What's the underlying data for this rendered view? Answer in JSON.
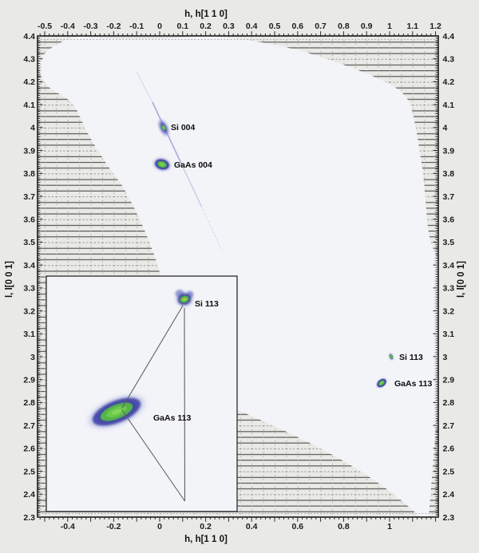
{
  "axes": {
    "top": {
      "title": "h, h[1 1 0]",
      "labels": [
        "-0.5",
        "-0.4",
        "-0.3",
        "-0.2",
        "-0.1",
        "0",
        "0.1",
        "0.2",
        "0.3",
        "0.4",
        "0.5",
        "0.6",
        "0.7",
        "0.8",
        "0.9",
        "1",
        "1.1",
        "1.2"
      ]
    },
    "bottom": {
      "title": "h, h[1 1 0]",
      "labels": [
        "-0.4",
        "-0.2",
        "0",
        "0.2",
        "0.4",
        "0.6",
        "0.8",
        "1"
      ]
    },
    "left": {
      "title": "l, l[0 0 1]",
      "labels": [
        "4.4",
        "4.3",
        "4.2",
        "4.1",
        "4",
        "3.9",
        "3.8",
        "3.7",
        "3.6",
        "3.5",
        "3.4",
        "3.3",
        "3.2",
        "3.1",
        "3",
        "2.9",
        "2.8",
        "2.7",
        "2.6",
        "2.5",
        "2.4",
        "2.3"
      ]
    },
    "right": {
      "title": "l, l[0 0 1]",
      "labels": [
        "4.4",
        "4.3",
        "4.2",
        "4.1",
        "4",
        "3.9",
        "3.8",
        "3.7",
        "3.6",
        "3.5",
        "3.4",
        "3.3",
        "3.2",
        "3.1",
        "3",
        "2.9",
        "2.8",
        "2.7",
        "2.6",
        "2.5",
        "2.4",
        "2.3"
      ]
    }
  },
  "peak_labels": {
    "si004": "Si 004",
    "gaas004": "GaAs 004",
    "si113": "Si 113",
    "gaas113": "GaAs 113",
    "inset_si113": "Si 113",
    "inset_gaas113": "GaAs 113"
  },
  "colors": {
    "background": "#e9e9e7",
    "accessible_region": "#f3f4f8",
    "hatched_region": "#e9e9e6",
    "peak_halo": "#9aa0da",
    "peak_blue": "#3a41a3",
    "peak_green": "#54b549",
    "peak_green_bright": "#7ccf53",
    "peak_yellow": "#efe93f",
    "peak_red": "#d94f28",
    "frame": "#1a1a1a"
  },
  "chart_data": {
    "type": "heatmap",
    "xlabel": "h, h[1 1 0]",
    "ylabel": "l, l[0 0 1]",
    "xlim": [
      -0.53,
      1.21
    ],
    "ylim": [
      2.3,
      4.4
    ],
    "x_tick_step": 0.1,
    "y_tick_step": 0.1,
    "grid": false,
    "peaks": [
      {
        "label": "Si 004",
        "h": 0.02,
        "l": 4.0
      },
      {
        "label": "GaAs 004",
        "h": 0.01,
        "l": 3.84
      },
      {
        "label": "Si 113",
        "h": 1.0,
        "l": 3.0
      },
      {
        "label": "GaAs 113",
        "h": 0.96,
        "l": 2.89
      }
    ],
    "inset": {
      "content": "magnified view of the 113 reflections with connector lines",
      "peaks": [
        {
          "label": "Si 113",
          "h": 1.0,
          "l": 3.0
        },
        {
          "label": "GaAs 113",
          "h": 0.96,
          "l": 2.89
        }
      ]
    },
    "colormap": [
      "#9aa0da",
      "#3a41a3",
      "#54b549",
      "#efe93f",
      "#d94f28"
    ],
    "hatched_regions": "horizontally hatched areas at the map corners (inaccessible reciprocal space)"
  }
}
